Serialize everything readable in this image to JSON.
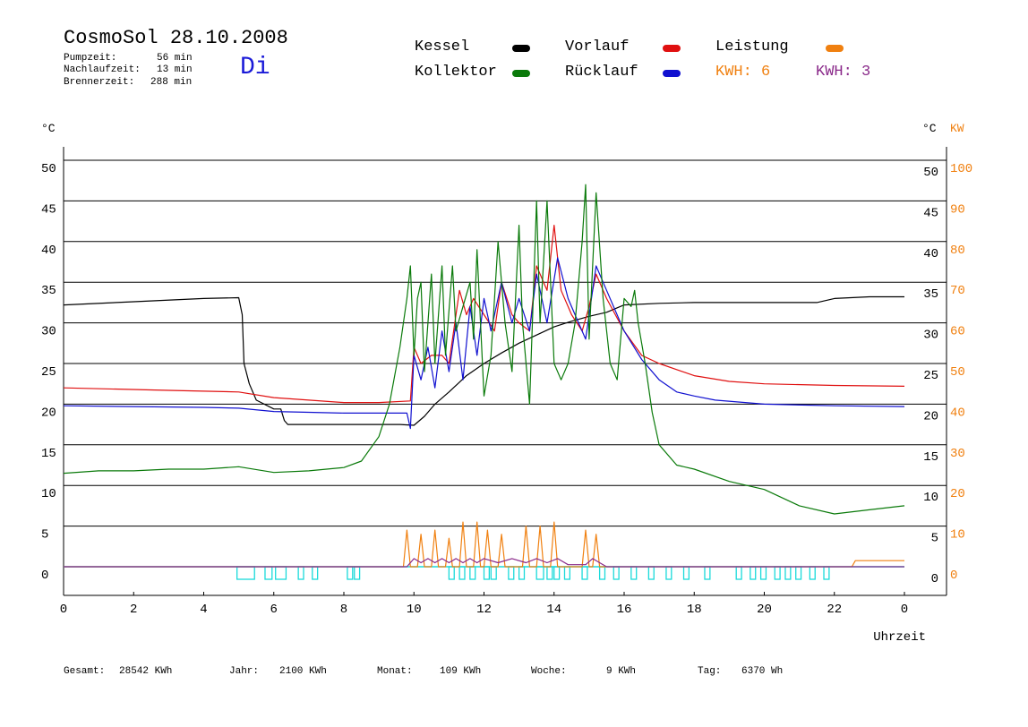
{
  "header": {
    "title": "CosmoSol 28.10.2008",
    "day": "Di",
    "stats": [
      {
        "label": "Pumpzeit:",
        "value": "56 min"
      },
      {
        "label": "Nachlaufzeit:",
        "value": "13 min"
      },
      {
        "label": "Brennerzeit:",
        "value": "288 min"
      }
    ]
  },
  "legend": {
    "kessel": {
      "label": "Kessel",
      "color": "#000000"
    },
    "kollektor": {
      "label": "Kollektor",
      "color": "#0a7a0a"
    },
    "vorlauf": {
      "label": "Vorlauf",
      "color": "#e01010"
    },
    "ruecklauf": {
      "label": "Rücklauf",
      "color": "#1010d0"
    },
    "leistung": {
      "label": "Leistung",
      "color": "#f08010"
    },
    "kwh1": {
      "label": "KWH: 6",
      "color": "#f08010"
    },
    "kwh2": {
      "label": "KWH: 3",
      "color": "#8a2a8a"
    }
  },
  "footer": [
    {
      "label": "Gesamt:",
      "value": "28542 KWh"
    },
    {
      "label": "Jahr:",
      "value": "2100 KWh"
    },
    {
      "label": "Monat:",
      "value": "109 KWh"
    },
    {
      "label": "Woche:",
      "value": "9 KWh"
    },
    {
      "label": "Tag:",
      "value": "6370 Wh"
    }
  ],
  "chart_data": {
    "type": "line",
    "xlabel": "Uhrzeit",
    "ylabel_left": "°C",
    "ylabel_right": [
      "°C",
      "KW"
    ],
    "xlim": [
      0,
      24
    ],
    "ylim": [
      0,
      50
    ],
    "ylim_kw": [
      0,
      100
    ],
    "x_ticks": [
      "0",
      "2",
      "4",
      "6",
      "8",
      "10",
      "12",
      "14",
      "16",
      "18",
      "20",
      "22",
      "0"
    ],
    "y_ticks": [
      0,
      5,
      10,
      15,
      20,
      25,
      30,
      35,
      40,
      45,
      50
    ],
    "kw_ticks": [
      0,
      10,
      20,
      30,
      40,
      50,
      60,
      70,
      80,
      90,
      100
    ],
    "grid": true,
    "series": [
      {
        "name": "Kessel",
        "color": "#000000",
        "points": [
          [
            0,
            32.2
          ],
          [
            2,
            32.6
          ],
          [
            4,
            33
          ],
          [
            5,
            33.1
          ],
          [
            5.1,
            31
          ],
          [
            5.15,
            25
          ],
          [
            5.3,
            22.5
          ],
          [
            5.5,
            20.5
          ],
          [
            6,
            19.4
          ],
          [
            6.2,
            19.4
          ],
          [
            6.3,
            18
          ],
          [
            6.4,
            17.5
          ],
          [
            8,
            17.5
          ],
          [
            9.6,
            17.5
          ],
          [
            10,
            17.4
          ],
          [
            10.3,
            18.5
          ],
          [
            10.6,
            20
          ],
          [
            11,
            21.5
          ],
          [
            11.5,
            23.5
          ],
          [
            12,
            25
          ],
          [
            12.5,
            26.3
          ],
          [
            13,
            27.5
          ],
          [
            13.5,
            28.5
          ],
          [
            14,
            29.5
          ],
          [
            14.5,
            30.2
          ],
          [
            15,
            30.8
          ],
          [
            15.5,
            31.3
          ],
          [
            16,
            32.2
          ],
          [
            17,
            32.4
          ],
          [
            18,
            32.5
          ],
          [
            20,
            32.5
          ],
          [
            21.5,
            32.5
          ],
          [
            22,
            33
          ],
          [
            23,
            33.2
          ],
          [
            24,
            33.2
          ]
        ]
      },
      {
        "name": "Vorlauf",
        "color": "#e01010",
        "points": [
          [
            0,
            22.0
          ],
          [
            3,
            21.7
          ],
          [
            5,
            21.5
          ],
          [
            6,
            20.8
          ],
          [
            7,
            20.5
          ],
          [
            8,
            20.2
          ],
          [
            9,
            20.2
          ],
          [
            9.9,
            20.4
          ],
          [
            10,
            27
          ],
          [
            10.2,
            25
          ],
          [
            10.5,
            26
          ],
          [
            10.8,
            26
          ],
          [
            11,
            25
          ],
          [
            11.3,
            34
          ],
          [
            11.5,
            31
          ],
          [
            11.7,
            33
          ],
          [
            12,
            31
          ],
          [
            12.3,
            29
          ],
          [
            12.5,
            35
          ],
          [
            12.8,
            31
          ],
          [
            13,
            30
          ],
          [
            13.3,
            29
          ],
          [
            13.5,
            37
          ],
          [
            13.8,
            34
          ],
          [
            14,
            42
          ],
          [
            14.2,
            34
          ],
          [
            14.5,
            31
          ],
          [
            14.8,
            29
          ],
          [
            15,
            32
          ],
          [
            15.2,
            36
          ],
          [
            15.5,
            33
          ],
          [
            16,
            29
          ],
          [
            16.5,
            26
          ],
          [
            17,
            25
          ],
          [
            18,
            23.5
          ],
          [
            19,
            22.8
          ],
          [
            20,
            22.5
          ],
          [
            22,
            22.3
          ],
          [
            24,
            22.2
          ]
        ]
      },
      {
        "name": "Rücklauf",
        "color": "#1010d0",
        "points": [
          [
            0,
            19.8
          ],
          [
            2,
            19.7
          ],
          [
            4,
            19.6
          ],
          [
            5,
            19.5
          ],
          [
            6,
            19.1
          ],
          [
            7,
            19.0
          ],
          [
            8,
            18.9
          ],
          [
            9.5,
            18.9
          ],
          [
            9.8,
            18.9
          ],
          [
            9.9,
            17
          ],
          [
            10,
            26
          ],
          [
            10.2,
            23
          ],
          [
            10.4,
            27
          ],
          [
            10.6,
            22
          ],
          [
            10.8,
            29
          ],
          [
            11,
            24
          ],
          [
            11.2,
            30
          ],
          [
            11.4,
            23
          ],
          [
            11.6,
            32
          ],
          [
            11.8,
            26
          ],
          [
            12,
            33
          ],
          [
            12.2,
            29
          ],
          [
            12.5,
            35
          ],
          [
            12.8,
            30
          ],
          [
            13,
            33
          ],
          [
            13.3,
            29
          ],
          [
            13.5,
            36
          ],
          [
            13.8,
            30
          ],
          [
            14.1,
            38
          ],
          [
            14.4,
            33
          ],
          [
            14.7,
            30
          ],
          [
            14.9,
            28
          ],
          [
            15.2,
            37
          ],
          [
            15.5,
            34
          ],
          [
            16,
            29
          ],
          [
            16.5,
            25.5
          ],
          [
            17,
            23
          ],
          [
            17.5,
            21.5
          ],
          [
            18,
            21
          ],
          [
            18.6,
            20.5
          ],
          [
            20,
            20
          ],
          [
            22,
            19.8
          ],
          [
            24,
            19.7
          ]
        ]
      },
      {
        "name": "Kollektor",
        "color": "#0a7a0a",
        "points": [
          [
            0,
            11.5
          ],
          [
            1,
            11.8
          ],
          [
            2,
            11.8
          ],
          [
            3,
            12.0
          ],
          [
            4,
            12.0
          ],
          [
            5,
            12.3
          ],
          [
            6,
            11.6
          ],
          [
            7,
            11.8
          ],
          [
            8,
            12.2
          ],
          [
            8.5,
            13
          ],
          [
            9,
            16
          ],
          [
            9.3,
            20
          ],
          [
            9.6,
            27
          ],
          [
            9.8,
            33
          ],
          [
            9.9,
            37
          ],
          [
            10,
            26
          ],
          [
            10.1,
            33
          ],
          [
            10.2,
            35
          ],
          [
            10.3,
            24
          ],
          [
            10.5,
            36
          ],
          [
            10.6,
            25
          ],
          [
            10.8,
            37
          ],
          [
            10.9,
            26
          ],
          [
            11.1,
            37
          ],
          [
            11.2,
            29
          ],
          [
            11.4,
            32
          ],
          [
            11.6,
            35
          ],
          [
            11.7,
            28
          ],
          [
            11.8,
            39
          ],
          [
            11.9,
            30
          ],
          [
            12,
            21
          ],
          [
            12.2,
            26
          ],
          [
            12.4,
            40
          ],
          [
            12.6,
            30
          ],
          [
            12.8,
            24
          ],
          [
            13,
            42
          ],
          [
            13.1,
            30
          ],
          [
            13.3,
            20
          ],
          [
            13.5,
            45
          ],
          [
            13.6,
            30
          ],
          [
            13.8,
            45
          ],
          [
            14.0,
            25
          ],
          [
            14.2,
            23
          ],
          [
            14.4,
            25
          ],
          [
            14.6,
            30
          ],
          [
            14.8,
            40
          ],
          [
            14.9,
            47
          ],
          [
            15.0,
            28
          ],
          [
            15.2,
            46
          ],
          [
            15.4,
            33
          ],
          [
            15.6,
            25
          ],
          [
            15.8,
            23
          ],
          [
            16.0,
            33
          ],
          [
            16.2,
            32
          ],
          [
            16.3,
            34
          ],
          [
            16.4,
            30
          ],
          [
            16.6,
            25
          ],
          [
            16.8,
            19
          ],
          [
            17,
            15
          ],
          [
            17.5,
            12.5
          ],
          [
            18,
            12
          ],
          [
            19,
            10.5
          ],
          [
            20,
            9.5
          ],
          [
            20.5,
            8.5
          ],
          [
            21,
            7.5
          ],
          [
            22,
            6.5
          ],
          [
            23,
            7
          ],
          [
            24,
            7.5
          ]
        ]
      },
      {
        "name": "Leistung",
        "color": "#f08010",
        "axis": "kw",
        "points": [
          [
            0,
            0
          ],
          [
            9.7,
            0
          ],
          [
            9.8,
            9
          ],
          [
            9.9,
            0
          ],
          [
            10.1,
            0
          ],
          [
            10.2,
            8
          ],
          [
            10.3,
            0
          ],
          [
            10.5,
            0
          ],
          [
            10.6,
            9
          ],
          [
            10.7,
            0
          ],
          [
            10.9,
            0
          ],
          [
            11.0,
            7
          ],
          [
            11.1,
            0
          ],
          [
            11.3,
            0
          ],
          [
            11.4,
            11
          ],
          [
            11.5,
            0
          ],
          [
            11.7,
            0
          ],
          [
            11.8,
            11
          ],
          [
            11.9,
            0
          ],
          [
            12,
            0
          ],
          [
            12.1,
            9
          ],
          [
            12.2,
            0
          ],
          [
            12.4,
            0
          ],
          [
            12.5,
            8
          ],
          [
            12.6,
            0
          ],
          [
            13.1,
            0
          ],
          [
            13.2,
            10
          ],
          [
            13.3,
            0
          ],
          [
            13.5,
            0
          ],
          [
            13.6,
            10
          ],
          [
            13.7,
            0
          ],
          [
            13.9,
            0
          ],
          [
            14.0,
            11
          ],
          [
            14.1,
            0
          ],
          [
            14.8,
            0
          ],
          [
            14.9,
            9
          ],
          [
            15.0,
            0
          ],
          [
            15.1,
            0
          ],
          [
            15.2,
            8
          ],
          [
            15.3,
            0
          ],
          [
            22.5,
            0
          ],
          [
            22.6,
            1.5
          ],
          [
            24,
            1.5
          ]
        ]
      },
      {
        "name": "KWH",
        "color": "#8a2a8a",
        "axis": "kw",
        "points": [
          [
            0,
            0
          ],
          [
            9.8,
            0
          ],
          [
            10.0,
            2
          ],
          [
            10.2,
            1
          ],
          [
            10.4,
            2
          ],
          [
            10.6,
            1
          ],
          [
            10.8,
            2
          ],
          [
            11,
            1
          ],
          [
            11.2,
            2
          ],
          [
            11.4,
            1
          ],
          [
            11.6,
            2
          ],
          [
            11.8,
            1
          ],
          [
            12,
            2
          ],
          [
            12.4,
            1
          ],
          [
            12.8,
            2
          ],
          [
            13.2,
            1
          ],
          [
            13.5,
            2
          ],
          [
            13.8,
            1
          ],
          [
            14.1,
            2
          ],
          [
            14.4,
            0.5
          ],
          [
            14.9,
            0.5
          ],
          [
            15.1,
            2
          ],
          [
            15.3,
            1
          ],
          [
            15.5,
            0
          ],
          [
            24,
            0
          ]
        ]
      }
    ],
    "pump_pulses_hours": [
      [
        4.95,
        5.45
      ],
      [
        5.75,
        5.95
      ],
      [
        6.05,
        6.35
      ],
      [
        6.7,
        6.85
      ],
      [
        7.1,
        7.25
      ],
      [
        8.1,
        8.25
      ],
      [
        8.3,
        8.45
      ],
      [
        11.0,
        11.15
      ],
      [
        11.3,
        11.45
      ],
      [
        11.6,
        11.75
      ],
      [
        12.0,
        12.15
      ],
      [
        12.2,
        12.35
      ],
      [
        12.7,
        12.85
      ],
      [
        13.0,
        13.15
      ],
      [
        13.5,
        13.7
      ],
      [
        13.8,
        13.95
      ],
      [
        14.0,
        14.15
      ],
      [
        14.3,
        14.45
      ],
      [
        14.8,
        14.95
      ],
      [
        15.3,
        15.45
      ],
      [
        15.7,
        15.85
      ],
      [
        16.2,
        16.35
      ],
      [
        16.7,
        16.85
      ],
      [
        17.2,
        17.35
      ],
      [
        17.7,
        17.85
      ],
      [
        18.3,
        18.45
      ],
      [
        19.2,
        19.35
      ],
      [
        19.6,
        19.75
      ],
      [
        19.9,
        20.05
      ],
      [
        20.3,
        20.45
      ],
      [
        20.6,
        20.75
      ],
      [
        20.9,
        21.05
      ],
      [
        21.3,
        21.45
      ],
      [
        21.7,
        21.85
      ]
    ],
    "pump_color": "#1adada"
  }
}
